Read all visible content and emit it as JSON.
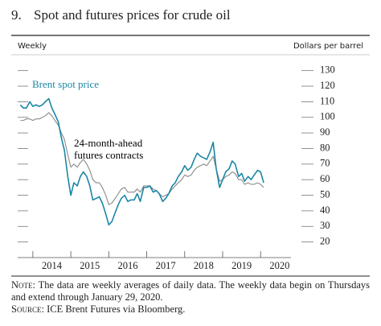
{
  "chart_data": {
    "type": "line",
    "number": "9.",
    "title": "Spot and futures prices for crude oil",
    "x_header": "Weekly",
    "y_label": "Dollars per barrel",
    "x": [
      2013.67,
      2013.75,
      2013.83,
      2013.92,
      2014.0,
      2014.08,
      2014.17,
      2014.25,
      2014.33,
      2014.42,
      2014.5,
      2014.58,
      2014.67,
      2014.75,
      2014.83,
      2014.92,
      2015.0,
      2015.08,
      2015.17,
      2015.25,
      2015.33,
      2015.42,
      2015.5,
      2015.58,
      2015.67,
      2015.75,
      2015.83,
      2015.92,
      2016.0,
      2016.08,
      2016.17,
      2016.25,
      2016.33,
      2016.42,
      2016.5,
      2016.58,
      2016.67,
      2016.75,
      2016.83,
      2016.92,
      2017.0,
      2017.08,
      2017.17,
      2017.25,
      2017.33,
      2017.42,
      2017.5,
      2017.58,
      2017.67,
      2017.75,
      2017.83,
      2017.92,
      2018.0,
      2018.08,
      2018.17,
      2018.25,
      2018.33,
      2018.42,
      2018.5,
      2018.58,
      2018.67,
      2018.75,
      2018.83,
      2018.92,
      2019.0,
      2019.08,
      2019.17,
      2019.25,
      2019.33,
      2019.42,
      2019.5,
      2019.58,
      2019.67,
      2019.75,
      2019.83,
      2019.92,
      2020.0,
      2020.08
    ],
    "series": [
      {
        "name": "Brent spot price",
        "color": "#1b87a6",
        "values": [
          108,
          106,
          106,
          110,
          107,
          108,
          107,
          108,
          110,
          112,
          106,
          102,
          97,
          87,
          79,
          62,
          50,
          58,
          56,
          62,
          65,
          62,
          56,
          47,
          48,
          49,
          45,
          38,
          31,
          33,
          39,
          44,
          48,
          50,
          46,
          47,
          47,
          51,
          46,
          55,
          55,
          56,
          52,
          53,
          51,
          46,
          48,
          51,
          56,
          58,
          62,
          65,
          69,
          66,
          68,
          73,
          77,
          75,
          74,
          73,
          78,
          84,
          67,
          55,
          60,
          65,
          67,
          72,
          70,
          62,
          64,
          59,
          62,
          60,
          63,
          66,
          65,
          58
        ]
      },
      {
        "name": "24-month-ahead futures contracts",
        "color": "#8a8a8a",
        "values": [
          98,
          98,
          99,
          99,
          98,
          99,
          99,
          100,
          101,
          103,
          101,
          98,
          95,
          90,
          86,
          76,
          68,
          70,
          68,
          71,
          73,
          70,
          66,
          60,
          58,
          58,
          55,
          50,
          44,
          45,
          48,
          51,
          54,
          55,
          52,
          52,
          52,
          54,
          52,
          56,
          56,
          56,
          54,
          53,
          51,
          49,
          50,
          51,
          54,
          56,
          58,
          60,
          63,
          62,
          63,
          66,
          68,
          69,
          70,
          69,
          72,
          75,
          67,
          59,
          60,
          62,
          63,
          65,
          64,
          60,
          60,
          57,
          58,
          57,
          57,
          58,
          57,
          55
        ]
      }
    ],
    "xlim": [
      2013.6,
      2020.8
    ],
    "xticks": [
      2014,
      2015,
      2016,
      2017,
      2018,
      2019,
      2020
    ],
    "ylim": [
      10,
      135
    ],
    "yticks": [
      20,
      30,
      40,
      50,
      60,
      70,
      80,
      90,
      100,
      110,
      120,
      130
    ],
    "note_label": "Note:",
    "note": "The data are weekly averages of daily data. The weekly data begin on Thursdays and extend through January 29, 2020.",
    "source_label": "Source:",
    "source": "ICE Brent Futures via Bloomberg."
  }
}
